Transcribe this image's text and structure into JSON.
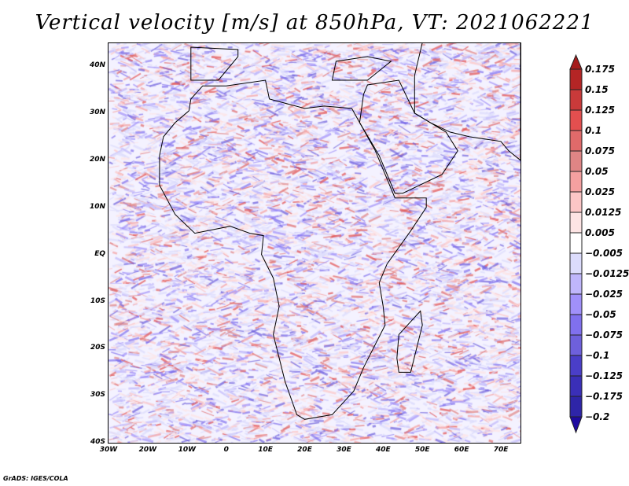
{
  "title": "Vertical velocity [m/s] at 850hPa, VT: 2021062221",
  "credit": "GrADS: IGES/COLA",
  "map": {
    "lon_range": [
      -30,
      75
    ],
    "lat_range": [
      -40,
      45
    ],
    "lat_labels": [
      {
        "lat": 40,
        "text": "40N"
      },
      {
        "lat": 30,
        "text": "30N"
      },
      {
        "lat": 20,
        "text": "20N"
      },
      {
        "lat": 10,
        "text": "10N"
      },
      {
        "lat": 0,
        "text": "EQ"
      },
      {
        "lat": -10,
        "text": "10S"
      },
      {
        "lat": -20,
        "text": "20S"
      },
      {
        "lat": -30,
        "text": "30S"
      },
      {
        "lat": -40,
        "text": "40S"
      }
    ],
    "lon_labels": [
      {
        "lon": -30,
        "text": "30W"
      },
      {
        "lon": -20,
        "text": "20W"
      },
      {
        "lon": -10,
        "text": "10W"
      },
      {
        "lon": 0,
        "text": "0"
      },
      {
        "lon": 10,
        "text": "10E"
      },
      {
        "lon": 20,
        "text": "20E"
      },
      {
        "lon": 30,
        "text": "30E"
      },
      {
        "lon": 40,
        "text": "40E"
      },
      {
        "lon": 50,
        "text": "50E"
      },
      {
        "lon": 60,
        "text": "60E"
      },
      {
        "lon": 70,
        "text": "70E"
      }
    ]
  },
  "colorbar": {
    "labels": [
      "0.175",
      "0.15",
      "0.125",
      "0.1",
      "0.075",
      "0.05",
      "0.025",
      "0.0125",
      "0.005",
      "−0.005",
      "−0.0125",
      "−0.025",
      "−0.05",
      "−0.075",
      "−0.1",
      "−0.125",
      "−0.175",
      "−0.2"
    ],
    "top_tip_color": "#a51c1c",
    "bottom_tip_color": "#1e0aa0",
    "box_colors": [
      "#b42525",
      "#c93a3a",
      "#e34f4f",
      "#e06a6a",
      "#df8585",
      "#f5a0a0",
      "#fcc6c6",
      "#fde4e4",
      "#ffffff",
      "#dcdcfc",
      "#bfb6fb",
      "#a090fa",
      "#8070ee",
      "#6e60dc",
      "#4a3ec8",
      "#3a2fb8",
      "#2e25a8"
    ]
  }
}
